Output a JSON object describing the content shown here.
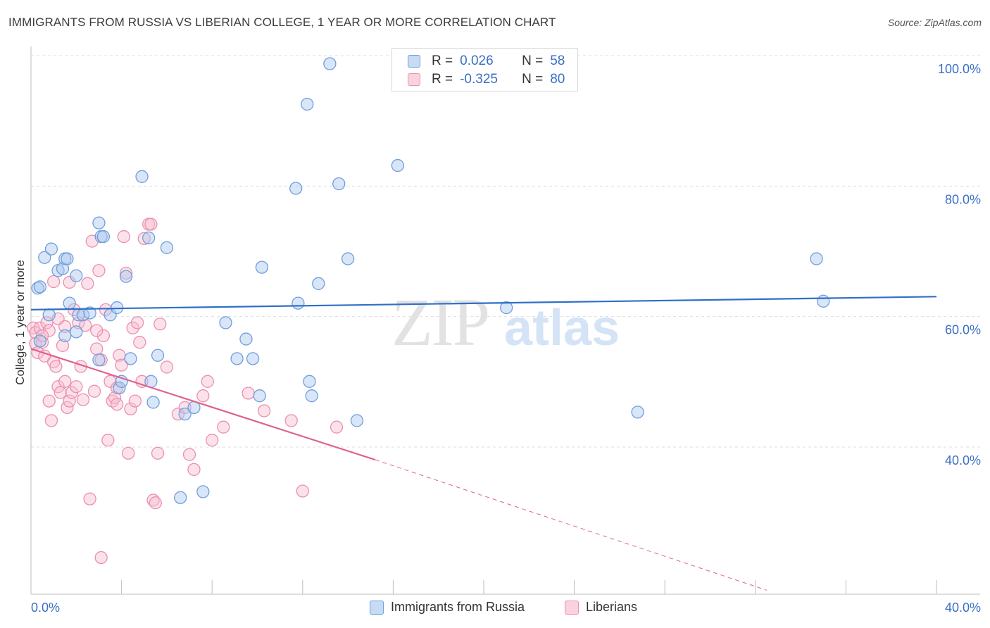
{
  "title": "IMMIGRANTS FROM RUSSIA VS LIBERIAN COLLEGE, 1 YEAR OR MORE CORRELATION CHART",
  "source": "Source: ZipAtlas.com",
  "watermark": {
    "zip": "ZIP",
    "atlas": "atlas"
  },
  "legend_top": {
    "r_label": "R =",
    "n_label": "N =",
    "series": [
      {
        "r": "0.026",
        "n": "58"
      },
      {
        "r": "-0.325",
        "n": "80"
      }
    ]
  },
  "colors": {
    "blue": "#6f9fdc",
    "blue_fill": "#aac8ef",
    "blue_line": "#2f6fc7",
    "pink": "#ec8fae",
    "pink_fill": "#f6bfd1",
    "pink_line": "#e0628f",
    "tick_label": "#3a6fc4",
    "grid": "#dedede"
  },
  "chart_data": {
    "type": "scatter",
    "title": "IMMIGRANTS FROM RUSSIA VS LIBERIAN COLLEGE, 1 YEAR OR MORE CORRELATION CHART",
    "xlabel": "",
    "ylabel": "College, 1 year or more",
    "xlim": [
      0,
      40
    ],
    "ylim": [
      20,
      100
    ],
    "x_tick_labels": [
      "0.0%",
      "40.0%"
    ],
    "y_ticks": [
      40,
      60,
      80,
      100
    ],
    "y_tick_labels": [
      "40.0%",
      "60.0%",
      "80.0%",
      "100.0%"
    ],
    "series": [
      {
        "name": "Immigrants from Russia",
        "r": 0.026,
        "n": 58,
        "trend": {
          "x0": 0,
          "y0": 63.0,
          "x1": 40,
          "y1": 65.0
        },
        "points": [
          [
            0.3,
            66.3
          ],
          [
            0.4,
            66.5
          ],
          [
            0.4,
            58.2
          ],
          [
            0.6,
            71.0
          ],
          [
            0.8,
            62.2
          ],
          [
            0.9,
            72.3
          ],
          [
            1.2,
            69.0
          ],
          [
            1.4,
            69.3
          ],
          [
            1.5,
            70.8
          ],
          [
            1.6,
            70.8
          ],
          [
            1.7,
            64.0
          ],
          [
            2.0,
            68.2
          ],
          [
            2.1,
            62.2
          ],
          [
            2.0,
            59.6
          ],
          [
            2.3,
            62.2
          ],
          [
            2.6,
            62.5
          ],
          [
            3.0,
            55.3
          ],
          [
            3.1,
            74.2
          ],
          [
            3.0,
            76.3
          ],
          [
            3.2,
            74.2
          ],
          [
            3.5,
            62.2
          ],
          [
            3.8,
            63.3
          ],
          [
            3.9,
            51.0
          ],
          [
            4.0,
            52.0
          ],
          [
            4.2,
            68.1
          ],
          [
            4.4,
            55.5
          ],
          [
            4.9,
            83.4
          ],
          [
            5.2,
            74.0
          ],
          [
            5.3,
            52.0
          ],
          [
            5.4,
            48.8
          ],
          [
            5.6,
            56.0
          ],
          [
            6.0,
            72.5
          ],
          [
            6.6,
            34.2
          ],
          [
            6.8,
            47.0
          ],
          [
            7.2,
            48.0
          ],
          [
            7.6,
            35.1
          ],
          [
            8.6,
            61.0
          ],
          [
            9.1,
            55.5
          ],
          [
            9.8,
            55.5
          ],
          [
            9.5,
            58.5
          ],
          [
            10.1,
            49.8
          ],
          [
            10.2,
            69.5
          ],
          [
            11.7,
            81.6
          ],
          [
            11.8,
            64.0
          ],
          [
            12.2,
            94.5
          ],
          [
            12.3,
            52.0
          ],
          [
            12.4,
            49.8
          ],
          [
            12.7,
            67.0
          ],
          [
            13.2,
            100.7
          ],
          [
            13.6,
            82.3
          ],
          [
            14.0,
            70.8
          ],
          [
            14.4,
            46.0
          ],
          [
            16.2,
            85.1
          ],
          [
            21.0,
            63.3
          ],
          [
            26.8,
            47.3
          ],
          [
            34.7,
            70.8
          ],
          [
            35.0,
            64.3
          ],
          [
            1.5,
            59.0
          ]
        ]
      },
      {
        "name": "Liberians",
        "r": -0.325,
        "n": 80,
        "trend": {
          "x0": 0,
          "y0": 57.0,
          "x1": 15.2,
          "y1": 40.0
        },
        "trend_ext": {
          "x0": 15.2,
          "y0": 40.0,
          "x1": 32.5,
          "y1": 20.0
        },
        "points": [
          [
            0.1,
            60.2
          ],
          [
            0.2,
            59.5
          ],
          [
            0.2,
            57.8
          ],
          [
            0.3,
            56.4
          ],
          [
            0.4,
            60.2
          ],
          [
            0.5,
            58.0
          ],
          [
            0.6,
            55.9
          ],
          [
            0.7,
            61.0
          ],
          [
            0.8,
            59.8
          ],
          [
            0.8,
            49.0
          ],
          [
            0.9,
            46.0
          ],
          [
            1.0,
            55.0
          ],
          [
            1.0,
            67.3
          ],
          [
            1.1,
            54.3
          ],
          [
            1.2,
            51.2
          ],
          [
            1.2,
            61.6
          ],
          [
            1.3,
            50.3
          ],
          [
            1.5,
            52.0
          ],
          [
            1.5,
            60.4
          ],
          [
            1.6,
            48.0
          ],
          [
            1.7,
            67.2
          ],
          [
            1.7,
            49.0
          ],
          [
            1.8,
            50.3
          ],
          [
            1.9,
            63.0
          ],
          [
            2.0,
            51.2
          ],
          [
            2.1,
            61.0
          ],
          [
            2.2,
            54.3
          ],
          [
            2.3,
            49.2
          ],
          [
            2.4,
            60.6
          ],
          [
            2.5,
            67.0
          ],
          [
            2.6,
            34.0
          ],
          [
            2.7,
            73.5
          ],
          [
            2.8,
            50.5
          ],
          [
            2.9,
            57.0
          ],
          [
            3.0,
            69.0
          ],
          [
            3.1,
            55.3
          ],
          [
            3.1,
            25.0
          ],
          [
            3.2,
            59.0
          ],
          [
            3.3,
            63.0
          ],
          [
            3.4,
            43.0
          ],
          [
            3.5,
            52.0
          ],
          [
            3.6,
            49.0
          ],
          [
            3.7,
            49.5
          ],
          [
            3.8,
            51.0
          ],
          [
            3.9,
            56.0
          ],
          [
            4.0,
            54.5
          ],
          [
            4.1,
            74.2
          ],
          [
            4.2,
            68.6
          ],
          [
            4.3,
            41.0
          ],
          [
            4.4,
            47.8
          ],
          [
            4.5,
            60.2
          ],
          [
            4.6,
            49.0
          ],
          [
            4.7,
            61.0
          ],
          [
            4.8,
            58.0
          ],
          [
            4.9,
            52.0
          ],
          [
            5.0,
            73.9
          ],
          [
            5.2,
            76.1
          ],
          [
            5.3,
            76.1
          ],
          [
            5.4,
            33.8
          ],
          [
            5.5,
            33.4
          ],
          [
            5.6,
            41.0
          ],
          [
            5.7,
            60.8
          ],
          [
            6.0,
            54.2
          ],
          [
            6.5,
            47.0
          ],
          [
            7.0,
            40.8
          ],
          [
            7.2,
            38.5
          ],
          [
            7.6,
            49.8
          ],
          [
            7.8,
            52.0
          ],
          [
            8.0,
            43.0
          ],
          [
            8.5,
            45.0
          ],
          [
            9.6,
            50.2
          ],
          [
            10.3,
            47.5
          ],
          [
            11.5,
            46.0
          ],
          [
            12.0,
            35.2
          ],
          [
            13.5,
            45.0
          ],
          [
            2.9,
            59.8
          ],
          [
            1.4,
            57.5
          ],
          [
            0.5,
            59.0
          ],
          [
            3.8,
            48.5
          ],
          [
            6.8,
            48.0
          ]
        ]
      }
    ]
  },
  "legend_bottom": [
    "Immigrants from Russia",
    "Liberians"
  ]
}
